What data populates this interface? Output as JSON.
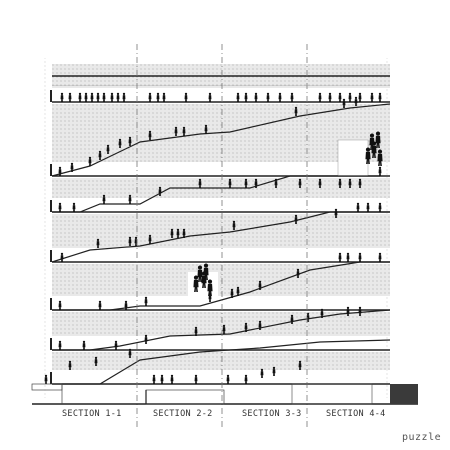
{
  "brand": "puzzle",
  "sections": [
    {
      "label": "SECTION 1-1"
    },
    {
      "label": "SECTION 2-2"
    },
    {
      "label": "SECTION 3-3"
    },
    {
      "label": "SECTION 4-4"
    }
  ],
  "floor_count": 8,
  "colors": {
    "line": "#222222",
    "hatch_fill": "#e6e6e6",
    "hatch_dot": "#9a9a9a",
    "figure": "#111111",
    "cut_line": "#777777",
    "ground": "#3a3a3a"
  }
}
